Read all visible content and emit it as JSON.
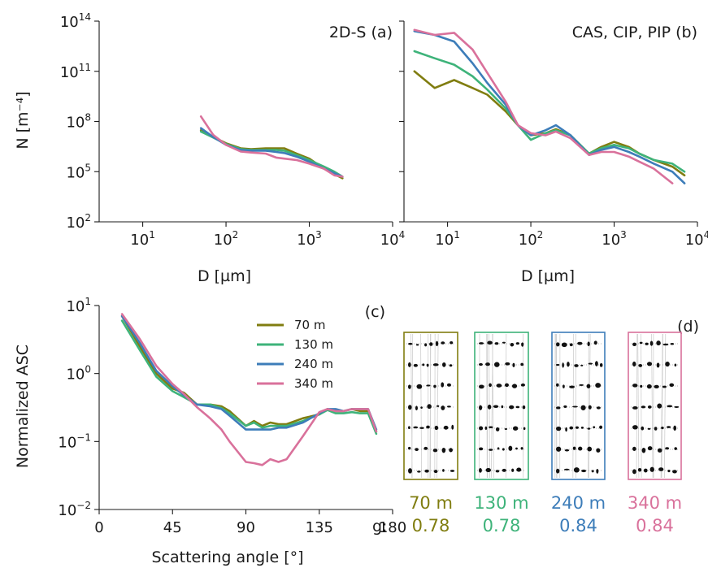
{
  "colors": {
    "70 m": "#807d10",
    "130 m": "#3eb37a",
    "240 m": "#3d7db9",
    "340 m": "#d9719b"
  },
  "chart_data": [
    {
      "panel": "a",
      "type": "line",
      "annotation": "2D-S  (a)",
      "xlabel": "D [µm]",
      "ylabel": "N [m⁻⁴]",
      "xscale": "log",
      "yscale": "log",
      "xlim": [
        3,
        10000
      ],
      "ylim": [
        100,
        100000000000000
      ],
      "xticks": [
        "10^1",
        "10^2",
        "10^3",
        "10^4"
      ],
      "yticks": [
        "10^2",
        "10^5",
        "10^8",
        "10^11",
        "10^14"
      ],
      "series": [
        {
          "name": "70 m",
          "x": [
            50,
            70,
            100,
            150,
            200,
            300,
            400,
            500,
            700,
            1000,
            1500,
            2000,
            2500
          ],
          "y": [
            30000000.0,
            12000000.0,
            5000000.0,
            2500000.0,
            2200000.0,
            2500000.0,
            2500000.0,
            2500000.0,
            1200000.0,
            600000.0,
            150000.0,
            70000.0,
            40000.0
          ]
        },
        {
          "name": "130 m",
          "x": [
            50,
            70,
            100,
            150,
            200,
            300,
            400,
            500,
            700,
            1000,
            1500,
            2000,
            2500
          ],
          "y": [
            25000000.0,
            11000000.0,
            4500000.0,
            2200000.0,
            2000000.0,
            2000000.0,
            2000000.0,
            1800000.0,
            1000000.0,
            500000.0,
            200000.0,
            100000.0,
            50000.0
          ]
        },
        {
          "name": "240 m",
          "x": [
            50,
            70,
            100,
            150,
            200,
            300,
            400,
            500,
            700,
            1000,
            1500,
            2000,
            2500
          ],
          "y": [
            40000000.0,
            12000000.0,
            4000000.0,
            2000000.0,
            1800000.0,
            1800000.0,
            1500000.0,
            1300000.0,
            800000.0,
            400000.0,
            150000.0,
            80000.0,
            50000.0
          ]
        },
        {
          "name": "340 m",
          "x": [
            50,
            70,
            100,
            150,
            200,
            300,
            400,
            500,
            700,
            1000,
            1500,
            2000,
            2500
          ],
          "y": [
            200000000.0,
            16000000.0,
            4000000.0,
            1600000.0,
            1400000.0,
            1200000.0,
            700000.0,
            600000.0,
            500000.0,
            300000.0,
            150000.0,
            60000.0,
            50000.0
          ]
        }
      ]
    },
    {
      "panel": "b",
      "type": "line",
      "annotation": "CAS, CIP, PIP  (b)",
      "xlabel": "D [µm]",
      "xscale": "log",
      "yscale": "log",
      "xlim": [
        3,
        10000
      ],
      "ylim": [
        100,
        100000000000000
      ],
      "xticks": [
        "10^1",
        "10^2",
        "10^3",
        "10^4"
      ],
      "series": [
        {
          "name": "70 m",
          "x": [
            4,
            7,
            12,
            20,
            30,
            50,
            70,
            100,
            150,
            200,
            300,
            500,
            700,
            1000,
            1500,
            2000,
            3000,
            5000,
            7000
          ],
          "y": [
            100000000000.0,
            10000000000.0,
            30000000000.0,
            10000000000.0,
            4000000000.0,
            400000000.0,
            60000000.0,
            15000000.0,
            20000000.0,
            35000000.0,
            15000000.0,
            1200000.0,
            3000000.0,
            6000000.0,
            3000000.0,
            1200000.0,
            500000.0,
            200000.0,
            60000.0
          ]
        },
        {
          "name": "130 m",
          "x": [
            4,
            7,
            12,
            20,
            30,
            50,
            70,
            100,
            150,
            200,
            300,
            500,
            700,
            1000,
            1500,
            2000,
            3000,
            5000,
            7000
          ],
          "y": [
            1600000000000.0,
            600000000000.0,
            250000000000.0,
            50000000000.0,
            8000000000.0,
            600000000.0,
            60000000.0,
            8000000.0,
            20000000.0,
            30000000.0,
            15000000.0,
            1200000.0,
            2500000.0,
            4000000.0,
            2500000.0,
            1200000.0,
            500000.0,
            300000.0,
            100000.0
          ]
        },
        {
          "name": "240 m",
          "x": [
            4,
            7,
            12,
            20,
            30,
            50,
            70,
            100,
            150,
            200,
            300,
            500,
            700,
            1000,
            1500,
            2000,
            3000,
            5000,
            7000
          ],
          "y": [
            25000000000000.0,
            15000000000000.0,
            6000000000000.0,
            300000000000.0,
            20000000000.0,
            1000000000.0,
            60000000.0,
            15000000.0,
            30000000.0,
            60000000.0,
            15000000.0,
            1000000.0,
            2000000.0,
            3000000.0,
            1500000.0,
            800000.0,
            300000.0,
            100000.0,
            20000.0
          ]
        },
        {
          "name": "340 m",
          "x": [
            4,
            7,
            12,
            20,
            30,
            50,
            70,
            100,
            150,
            200,
            300,
            500,
            700,
            1000,
            1500,
            2000,
            3000,
            5000
          ],
          "y": [
            30000000000000.0,
            15000000000000.0,
            20000000000000.0,
            2000000000000.0,
            80000000000.0,
            1500000000.0,
            60000000.0,
            20000000.0,
            15000000.0,
            25000000.0,
            10000000.0,
            1000000.0,
            1500000.0,
            1500000.0,
            800000.0,
            400000.0,
            150000.0,
            20000.0
          ]
        }
      ]
    },
    {
      "panel": "c",
      "type": "line",
      "annotation": "(c)",
      "xlabel": "Scattering angle [°]",
      "ylabel": "Normalized ASC",
      "yscale": "log",
      "xlim": [
        0,
        180
      ],
      "ylim": [
        0.01,
        10
      ],
      "xticks": [
        "0",
        "45",
        "90",
        "135",
        "180"
      ],
      "yticks": [
        "10^-2",
        "10^-1",
        "10^0",
        "10^1"
      ],
      "legend": "top-right",
      "series": [
        {
          "name": "70 m",
          "x": [
            14,
            25,
            35,
            45,
            52,
            60,
            68,
            75,
            80,
            90,
            95,
            100,
            105,
            110,
            115,
            125,
            135,
            140,
            145,
            150,
            155,
            160,
            165,
            170
          ],
          "y": [
            7,
            2.5,
            1.0,
            0.6,
            0.52,
            0.35,
            0.35,
            0.33,
            0.28,
            0.17,
            0.2,
            0.17,
            0.19,
            0.18,
            0.18,
            0.22,
            0.25,
            0.3,
            0.28,
            0.28,
            0.3,
            0.28,
            0.28,
            0.14
          ]
        },
        {
          "name": "130 m",
          "x": [
            14,
            25,
            35,
            45,
            52,
            60,
            68,
            75,
            80,
            90,
            95,
            100,
            105,
            110,
            115,
            125,
            135,
            140,
            145,
            150,
            155,
            160,
            165,
            170
          ],
          "y": [
            6,
            2.2,
            0.9,
            0.55,
            0.45,
            0.35,
            0.35,
            0.31,
            0.26,
            0.17,
            0.19,
            0.16,
            0.17,
            0.17,
            0.17,
            0.2,
            0.25,
            0.29,
            0.26,
            0.26,
            0.27,
            0.26,
            0.26,
            0.13
          ]
        },
        {
          "name": "240 m",
          "x": [
            14,
            25,
            35,
            45,
            52,
            60,
            68,
            75,
            80,
            90,
            95,
            100,
            105,
            110,
            115,
            125,
            135,
            140,
            145,
            150,
            155,
            160,
            165,
            170
          ],
          "y": [
            7,
            2.8,
            1.1,
            0.65,
            0.48,
            0.35,
            0.33,
            0.3,
            0.24,
            0.15,
            0.15,
            0.15,
            0.15,
            0.16,
            0.16,
            0.19,
            0.26,
            0.3,
            0.3,
            0.28,
            0.3,
            0.3,
            0.3,
            0.15
          ]
        },
        {
          "name": "340 m",
          "x": [
            14,
            25,
            35,
            45,
            52,
            60,
            68,
            75,
            80,
            90,
            95,
            100,
            105,
            110,
            115,
            125,
            135,
            140,
            145,
            150,
            155,
            160,
            165,
            170
          ],
          "y": [
            7.5,
            3.2,
            1.3,
            0.7,
            0.5,
            0.32,
            0.22,
            0.15,
            0.1,
            0.05,
            0.048,
            0.045,
            0.055,
            0.05,
            0.055,
            0.12,
            0.27,
            0.3,
            0.28,
            0.28,
            0.3,
            0.3,
            0.3,
            0.14
          ]
        }
      ]
    }
  ],
  "panel_d": {
    "annotation": "(d)",
    "g_label": "g:",
    "columns": [
      {
        "name": "70 m",
        "g": "0.78"
      },
      {
        "name": "130 m",
        "g": "0.78"
      },
      {
        "name": "240 m",
        "g": "0.84"
      },
      {
        "name": "340 m",
        "g": "0.84"
      }
    ]
  }
}
